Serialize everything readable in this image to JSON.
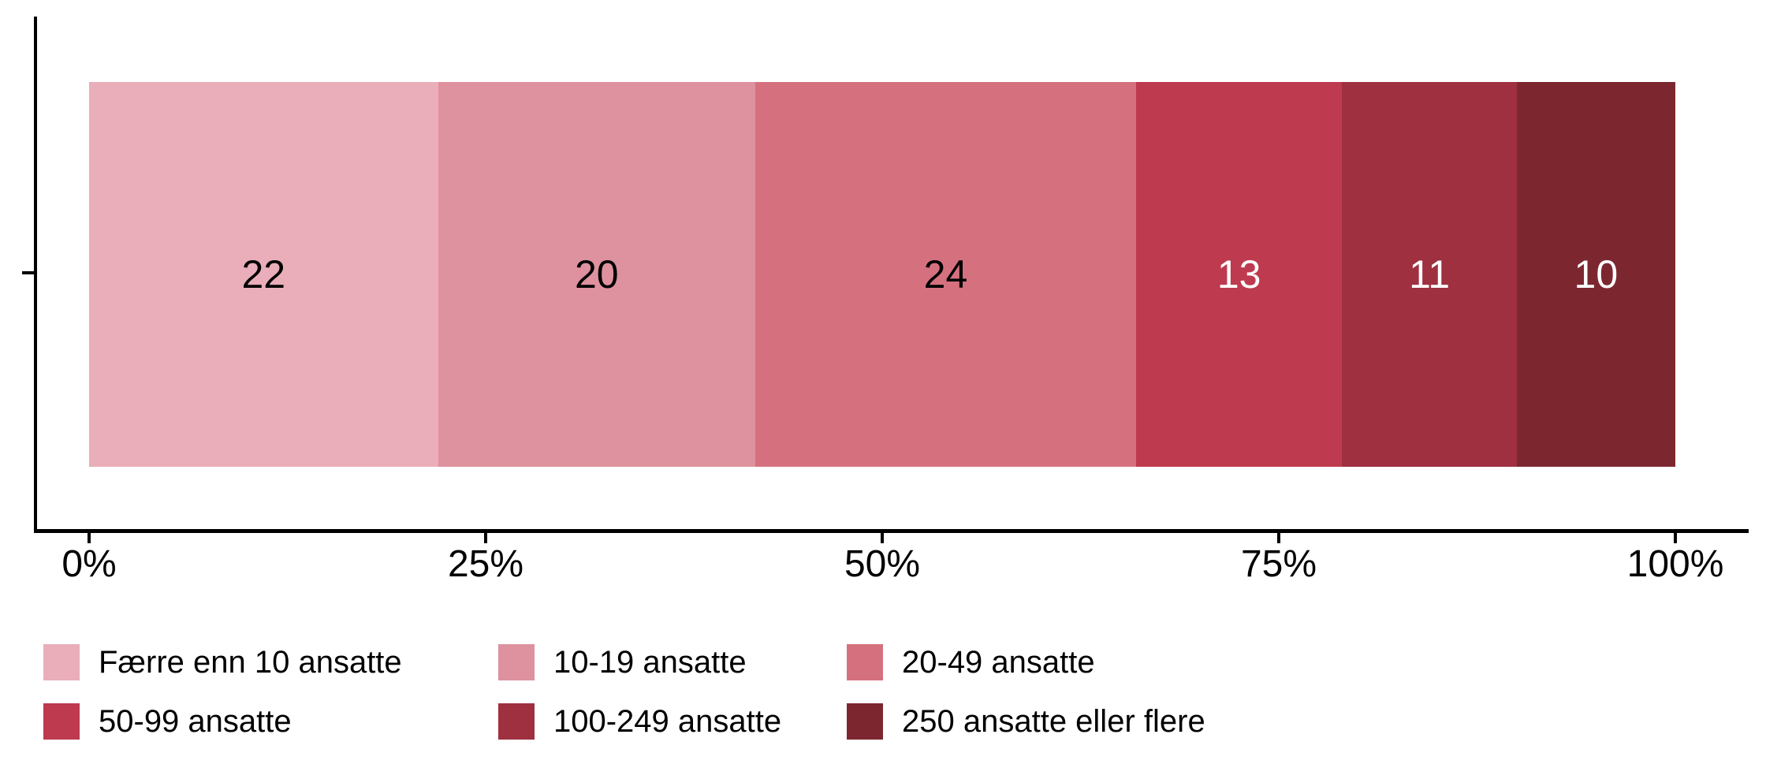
{
  "chart_data": {
    "type": "bar",
    "orientation": "horizontal",
    "stacked": true,
    "title": "",
    "xlabel": "",
    "ylabel": "",
    "categories": [
      ""
    ],
    "series": [
      {
        "name": "Færre enn 10 ansatte",
        "value": 22,
        "color": "#E9AEB9",
        "label_color": "#000000"
      },
      {
        "name": "10-19 ansatte",
        "value": 20,
        "color": "#DE919E",
        "label_color": "#000000"
      },
      {
        "name": "20-49 ansatte",
        "value": 24,
        "color": "#D5717F",
        "label_color": "#000000"
      },
      {
        "name": "50-99 ansatte",
        "value": 13,
        "color": "#BD3A4F",
        "label_color": "#FFFFFF"
      },
      {
        "name": "100-249 ansatte",
        "value": 11,
        "color": "#9E3040",
        "label_color": "#FFFFFF"
      },
      {
        "name": "250 ansatte eller flere",
        "value": 10,
        "color": "#7C2730",
        "label_color": "#FFFFFF"
      }
    ],
    "xlim": [
      0,
      100
    ],
    "x_ticks": [
      {
        "label": "0%",
        "value": 0
      },
      {
        "label": "25%",
        "value": 25
      },
      {
        "label": "50%",
        "value": 50
      },
      {
        "label": "75%",
        "value": 75
      },
      {
        "label": "100%",
        "value": 100
      }
    ],
    "grid": false,
    "legend_position": "bottom",
    "legend_layout": {
      "rows": 2,
      "columns": 3
    },
    "axis_color": "#000000",
    "background_color": "#FFFFFF"
  }
}
